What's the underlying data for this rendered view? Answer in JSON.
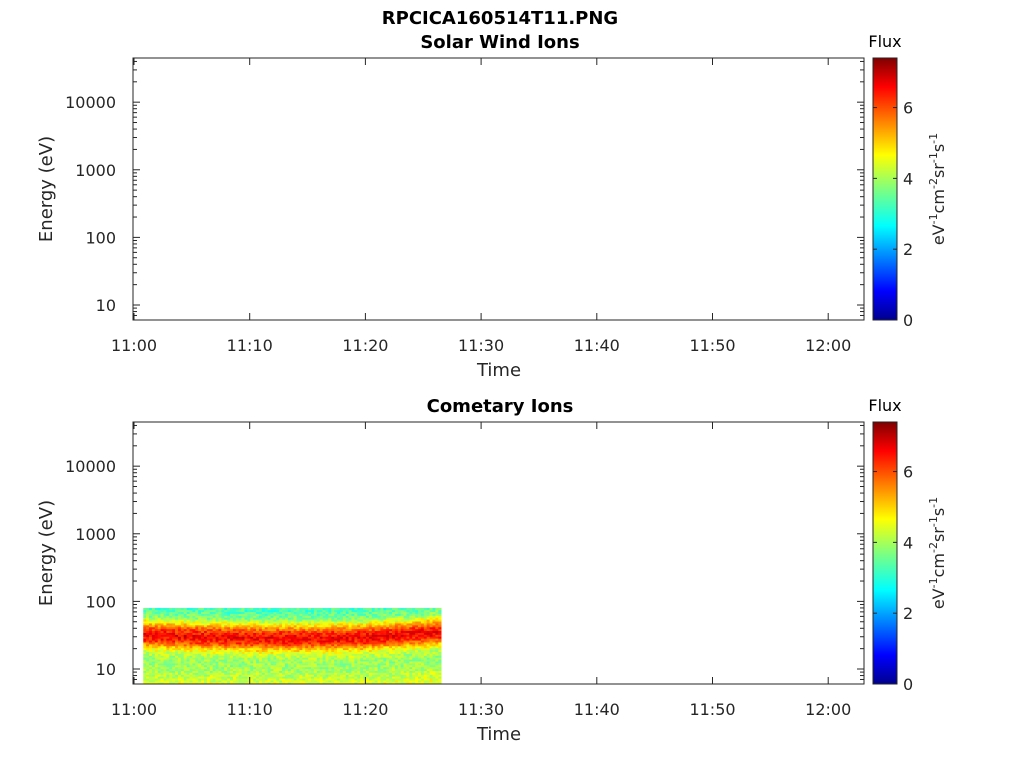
{
  "figure": {
    "title": "RPCICA160514T11.PNG"
  },
  "chart_data": [
    {
      "type": "heatmap",
      "title": "Solar Wind Ions",
      "xlabel": "Time",
      "ylabel": "Energy (eV)",
      "x_ticks": [
        "11:00",
        "11:10",
        "11:20",
        "11:30",
        "11:40",
        "11:50",
        "12:00"
      ],
      "x_range_minutes": [
        0,
        63
      ],
      "y_scale": "log",
      "y_range": [
        6,
        45000
      ],
      "y_ticks": [
        10,
        100,
        1000,
        10000
      ],
      "y_tick_labels": [
        "10",
        "100",
        "1000",
        "10000"
      ],
      "colorbar": {
        "title": "Flux",
        "label": "eV⁻¹cm⁻²sr⁻¹s⁻¹",
        "range": [
          0,
          7.4
        ],
        "ticks": [
          0,
          2,
          4,
          6
        ],
        "colormap": "jet"
      },
      "data_coverage": null
    },
    {
      "type": "heatmap",
      "title": "Cometary Ions",
      "xlabel": "Time",
      "ylabel": "Energy (eV)",
      "x_ticks": [
        "11:00",
        "11:10",
        "11:20",
        "11:30",
        "11:40",
        "11:50",
        "12:00"
      ],
      "x_range_minutes": [
        0,
        63
      ],
      "y_scale": "log",
      "y_range": [
        6,
        45000
      ],
      "y_ticks": [
        10,
        100,
        1000,
        10000
      ],
      "y_tick_labels": [
        "10",
        "100",
        "1000",
        "10000"
      ],
      "colorbar": {
        "title": "Flux",
        "label": "eV⁻¹cm⁻²sr⁻¹s⁻¹",
        "range": [
          0,
          7.4
        ],
        "ticks": [
          0,
          2,
          4,
          6
        ],
        "colormap": "jet"
      },
      "data_coverage": {
        "time_start_min": 0.8,
        "time_end_min": 26.5,
        "energy_min": 6,
        "energy_max": 80,
        "peak_energy": 32,
        "profile": [
          {
            "energy": 80,
            "flux": 3.3
          },
          {
            "energy": 60,
            "flux": 3.8
          },
          {
            "energy": 48,
            "flux": 5.0
          },
          {
            "energy": 40,
            "flux": 6.0
          },
          {
            "energy": 32,
            "flux": 6.6
          },
          {
            "energy": 26,
            "flux": 6.0
          },
          {
            "energy": 22,
            "flux": 5.0
          },
          {
            "energy": 18,
            "flux": 4.2
          },
          {
            "energy": 14,
            "flux": 3.9
          },
          {
            "energy": 10,
            "flux": 4.0
          },
          {
            "energy": 8,
            "flux": 4.2
          },
          {
            "energy": 6,
            "flux": 4.5
          }
        ]
      }
    }
  ]
}
